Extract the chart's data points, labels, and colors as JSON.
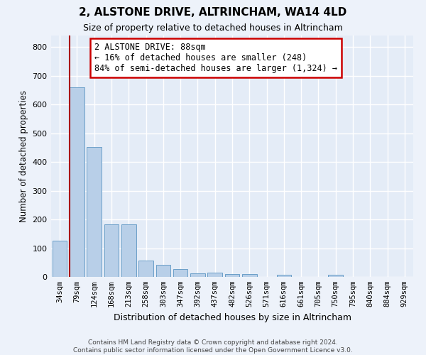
{
  "title1": "2, ALSTONE DRIVE, ALTRINCHAM, WA14 4LD",
  "title2": "Size of property relative to detached houses in Altrincham",
  "xlabel": "Distribution of detached houses by size in Altrincham",
  "ylabel": "Number of detached properties",
  "categories": [
    "34sqm",
    "79sqm",
    "124sqm",
    "168sqm",
    "213sqm",
    "258sqm",
    "303sqm",
    "347sqm",
    "392sqm",
    "437sqm",
    "482sqm",
    "526sqm",
    "571sqm",
    "616sqm",
    "661sqm",
    "705sqm",
    "750sqm",
    "795sqm",
    "840sqm",
    "884sqm",
    "929sqm"
  ],
  "values": [
    127,
    660,
    453,
    183,
    183,
    58,
    43,
    27,
    12,
    14,
    11,
    10,
    0,
    8,
    0,
    0,
    8,
    0,
    0,
    0,
    0
  ],
  "bar_color": "#b8cfe8",
  "bar_edge_color": "#6a9fc8",
  "marker_bin_index": 1,
  "marker_color": "#aa0000",
  "annotation_text": "2 ALSTONE DRIVE: 88sqm\n← 16% of detached houses are smaller (248)\n84% of semi-detached houses are larger (1,324) →",
  "annotation_box_color": "#ffffff",
  "annotation_box_edge": "#cc0000",
  "ylim": [
    0,
    840
  ],
  "yticks": [
    0,
    100,
    200,
    300,
    400,
    500,
    600,
    700,
    800
  ],
  "plot_bg": "#e4ecf7",
  "fig_bg": "#edf2fa",
  "grid_color": "#ffffff",
  "footnote": "Contains HM Land Registry data © Crown copyright and database right 2024.\nContains public sector information licensed under the Open Government Licence v3.0."
}
